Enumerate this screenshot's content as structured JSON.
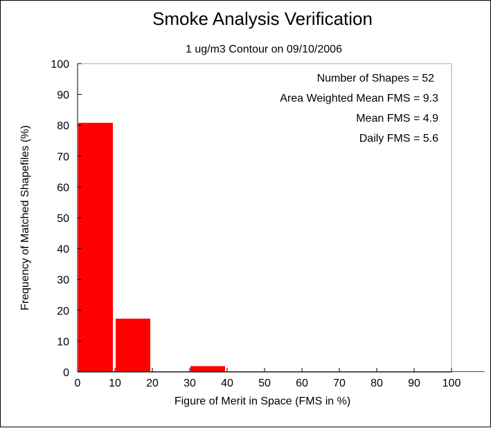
{
  "chart_data": {
    "type": "bar",
    "title": "Smoke Analysis Verification",
    "subtitle": "1 ug/m3 Contour on 09/10/2006",
    "xlabel": "Figure of Merit in Space (FMS in %)",
    "ylabel": "Frequency of Matched Shapefiles (%)",
    "xlim": [
      0,
      100
    ],
    "ylim": [
      0,
      100
    ],
    "x_ticks": [
      "0",
      "10",
      "20",
      "30",
      "40",
      "50",
      "60",
      "70",
      "80",
      "90",
      "100"
    ],
    "y_ticks": [
      "0",
      "10",
      "20",
      "30",
      "40",
      "50",
      "60",
      "70",
      "80",
      "90",
      "100"
    ],
    "bins": [
      {
        "from": 0,
        "to": 10,
        "value": 80.8
      },
      {
        "from": 10,
        "to": 20,
        "value": 17.3
      },
      {
        "from": 20,
        "to": 30,
        "value": 0
      },
      {
        "from": 30,
        "to": 40,
        "value": 1.9
      },
      {
        "from": 40,
        "to": 50,
        "value": 0
      },
      {
        "from": 50,
        "to": 60,
        "value": 0
      },
      {
        "from": 60,
        "to": 70,
        "value": 0
      },
      {
        "from": 70,
        "to": 80,
        "value": 0
      },
      {
        "from": 80,
        "to": 90,
        "value": 0
      },
      {
        "from": 90,
        "to": 100,
        "value": 0
      }
    ],
    "bar_color": "#ff0000",
    "annotations": [
      "Number of Shapes = 52",
      "Area Weighted Mean FMS = 9.3",
      "Mean FMS = 4.9",
      "Daily FMS = 5.6"
    ],
    "grid": false,
    "legend": "none"
  }
}
